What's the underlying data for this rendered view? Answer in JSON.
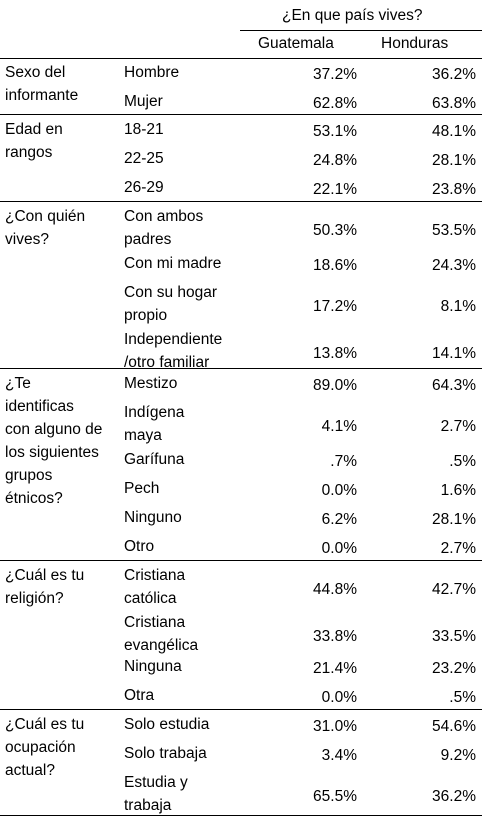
{
  "header": {
    "question": "¿En que país vives?",
    "col1": "Guatemala",
    "col2": "Honduras"
  },
  "sections": [
    {
      "title": [
        "Sexo del",
        "informante"
      ],
      "rows": [
        {
          "label": [
            "Hombre"
          ],
          "gt": "37.2%",
          "hn": "36.2%"
        },
        {
          "label": [
            "Mujer"
          ],
          "gt": "62.8%",
          "hn": "63.8%"
        }
      ]
    },
    {
      "title": [
        "Edad en",
        "rangos"
      ],
      "rows": [
        {
          "label": [
            "18-21"
          ],
          "gt": "53.1%",
          "hn": "48.1%"
        },
        {
          "label": [
            "22-25"
          ],
          "gt": "24.8%",
          "hn": "28.1%"
        },
        {
          "label": [
            "26-29"
          ],
          "gt": "22.1%",
          "hn": "23.8%"
        }
      ]
    },
    {
      "title": [
        "¿Con quién",
        "vives?"
      ],
      "rows": [
        {
          "label": [
            "Con ambos",
            "padres"
          ],
          "gt": "50.3%",
          "hn": "53.5%"
        },
        {
          "label": [
            "Con mi madre"
          ],
          "gt": "18.6%",
          "hn": "24.3%"
        },
        {
          "label": [
            "Con su hogar",
            "propio"
          ],
          "gt": "17.2%",
          "hn": "8.1%"
        },
        {
          "label": [
            "Independiente",
            "/otro familiar"
          ],
          "gt": "13.8%",
          "hn": "14.1%"
        }
      ]
    },
    {
      "title": [
        "¿Te",
        "identificas",
        "con alguno de",
        "los siguientes",
        "grupos",
        "étnicos?"
      ],
      "rows": [
        {
          "label": [
            "Mestizo"
          ],
          "gt": "89.0%",
          "hn": "64.3%"
        },
        {
          "label": [
            "Indígena",
            "maya"
          ],
          "gt": "4.1%",
          "hn": "2.7%"
        },
        {
          "label": [
            "Garífuna"
          ],
          "gt": ".7%",
          "hn": ".5%"
        },
        {
          "label": [
            "Pech"
          ],
          "gt": "0.0%",
          "hn": "1.6%"
        },
        {
          "label": [
            "Ninguno"
          ],
          "gt": "6.2%",
          "hn": "28.1%"
        },
        {
          "label": [
            "Otro"
          ],
          "gt": "0.0%",
          "hn": "2.7%"
        }
      ]
    },
    {
      "title": [
        "¿Cuál es tu",
        "religión?"
      ],
      "rows": [
        {
          "label": [
            "Cristiana",
            "católica"
          ],
          "gt": "44.8%",
          "hn": "42.7%"
        },
        {
          "label": [
            "Cristiana",
            "evangélica"
          ],
          "gt": "33.8%",
          "hn": "33.5%"
        },
        {
          "label": [
            "Ninguna"
          ],
          "gt": "21.4%",
          "hn": "23.2%"
        },
        {
          "label": [
            "Otra"
          ],
          "gt": "0.0%",
          "hn": ".5%"
        }
      ]
    },
    {
      "title": [
        "¿Cuál es tu",
        "ocupación",
        "actual?"
      ],
      "rows": [
        {
          "label": [
            "Solo estudia"
          ],
          "gt": "31.0%",
          "hn": "54.6%"
        },
        {
          "label": [
            "Solo trabaja"
          ],
          "gt": "3.4%",
          "hn": "9.2%"
        },
        {
          "label": [
            "Estudia y",
            "trabaja"
          ],
          "gt": "65.5%",
          "hn": "36.2%"
        }
      ]
    }
  ]
}
